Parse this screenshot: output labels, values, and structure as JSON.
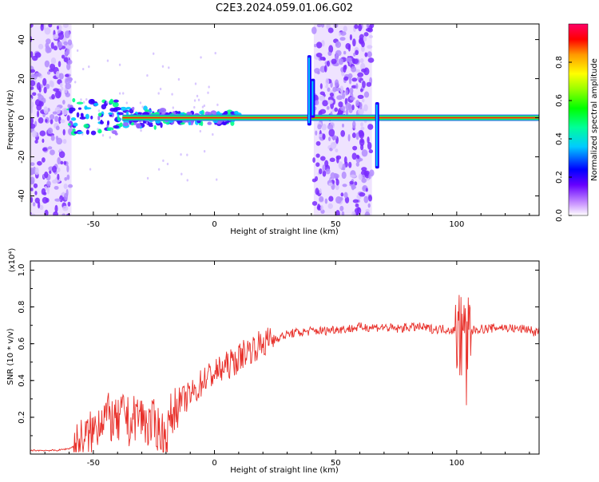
{
  "figure": {
    "title": "C2E3.2024.059.01.06.G02"
  },
  "chart_data": [
    {
      "type": "heatmap",
      "title": "C2E3.2024.059.01.06.G02",
      "xlabel": "Height of straight line (km)",
      "ylabel": "Frequency (Hz)",
      "xlim": [
        -76,
        134
      ],
      "ylim": [
        -50,
        48
      ],
      "xticks": [
        -50,
        0,
        50,
        100
      ],
      "yticks": [
        -40,
        -20,
        0,
        20,
        40
      ],
      "colorbar": {
        "label": "Normalized spectral amplitude",
        "range": [
          0,
          1
        ],
        "ticks": [
          0.0,
          0.2,
          0.4,
          0.6,
          0.8
        ],
        "colormap": [
          "#ffffff",
          "#cc99ff",
          "#6600ff",
          "#0000ff",
          "#00ccff",
          "#00ff99",
          "#00ff00",
          "#99ff00",
          "#ffff00",
          "#ff9900",
          "#ff0000",
          "#ff0066"
        ]
      },
      "features": [
        {
          "label": "broadband noise band",
          "x_range": [
            -76,
            -59
          ],
          "freq_range": [
            -50,
            48
          ]
        },
        {
          "label": "broadband noise band",
          "x_range": [
            41,
            65
          ],
          "freq_range": [
            -50,
            48
          ]
        },
        {
          "label": "spectral line",
          "x_range": [
            -59,
            134
          ],
          "freq": 0
        }
      ]
    },
    {
      "type": "line",
      "xlabel": "Height of straight line (km)",
      "ylabel": "SNR (10 * v/v)",
      "y_multiplier": "(x10⁴)",
      "xlim": [
        -76,
        134
      ],
      "ylim": [
        0,
        1.05
      ],
      "xticks": [
        -50,
        0,
        50,
        100
      ],
      "yticks": [
        0.2,
        0.4,
        0.6,
        0.8,
        1.0
      ],
      "series": [
        {
          "color": "#e8302a",
          "x": [
            -76,
            -70,
            -65,
            -60,
            -57,
            -55,
            -52,
            -50,
            -47,
            -45,
            -42,
            -40,
            -37,
            -35,
            -32,
            -30,
            -27,
            -25,
            -22,
            -20,
            -18,
            -15,
            -12,
            -10,
            -7,
            -5,
            -3,
            0,
            3,
            5,
            8,
            10,
            12,
            15,
            18,
            20,
            23,
            25,
            28,
            30,
            33,
            35,
            40,
            45,
            50,
            55,
            60,
            65,
            70,
            75,
            80,
            85,
            90,
            95,
            100,
            102,
            103,
            104,
            105,
            108,
            112,
            118,
            125,
            130,
            132,
            134
          ],
          "y": [
            0.02,
            0.02,
            0.02,
            0.03,
            0.05,
            0.07,
            0.1,
            0.12,
            0.2,
            0.22,
            0.18,
            0.16,
            0.24,
            0.15,
            0.22,
            0.2,
            0.15,
            0.17,
            0.12,
            0.08,
            0.2,
            0.28,
            0.3,
            0.32,
            0.35,
            0.4,
            0.42,
            0.44,
            0.46,
            0.48,
            0.5,
            0.52,
            0.55,
            0.57,
            0.59,
            0.6,
            0.62,
            0.63,
            0.64,
            0.65,
            0.66,
            0.66,
            0.67,
            0.67,
            0.68,
            0.68,
            0.69,
            0.69,
            0.69,
            0.68,
            0.69,
            0.69,
            0.68,
            0.68,
            0.67,
            0.66,
            0.8,
            0.45,
            0.66,
            0.68,
            0.68,
            0.69,
            0.68,
            0.68,
            0.66,
            0.67
          ]
        }
      ]
    }
  ]
}
